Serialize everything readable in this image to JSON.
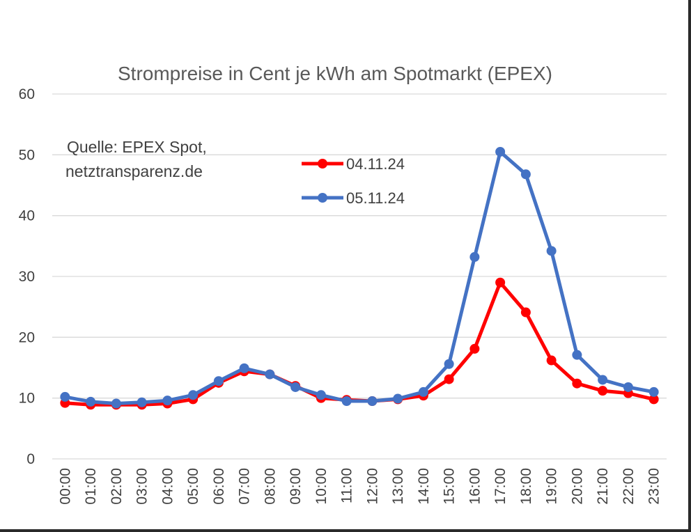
{
  "chart_data": {
    "type": "line",
    "title": "Strompreise in Cent je kWh am Spotmarkt (EPEX)",
    "annotation_lines": [
      "Quelle: EPEX Spot,",
      "netztransparenz.de"
    ],
    "xlabel": "",
    "ylabel": "",
    "ylim": [
      0,
      60
    ],
    "yticks": [
      0,
      10,
      20,
      30,
      40,
      50,
      60
    ],
    "grid": true,
    "legend_position": "top-center",
    "categories": [
      "00:00",
      "01:00",
      "02:00",
      "03:00",
      "04:00",
      "05:00",
      "06:00",
      "07:00",
      "08:00",
      "09:00",
      "10:00",
      "11:00",
      "12:00",
      "13:00",
      "14:00",
      "15:00",
      "16:00",
      "17:00",
      "18:00",
      "19:00",
      "20:00",
      "21:00",
      "22:00",
      "23:00"
    ],
    "series": [
      {
        "name": "04.11.24",
        "color": "#ff0000",
        "values": [
          9.2,
          8.9,
          8.9,
          8.9,
          9.1,
          9.8,
          12.5,
          14.4,
          13.9,
          12.0,
          10.0,
          9.7,
          9.5,
          9.8,
          10.4,
          13.1,
          18.1,
          29.0,
          24.1,
          16.2,
          12.4,
          11.2,
          10.8,
          9.8
        ]
      },
      {
        "name": "05.11.24",
        "color": "#4472c4",
        "values": [
          10.2,
          9.4,
          9.1,
          9.3,
          9.6,
          10.5,
          12.8,
          14.9,
          13.9,
          11.8,
          10.5,
          9.5,
          9.5,
          9.9,
          11.0,
          15.6,
          33.2,
          50.5,
          46.8,
          34.2,
          17.1,
          13.0,
          11.8,
          11.0
        ]
      }
    ]
  }
}
